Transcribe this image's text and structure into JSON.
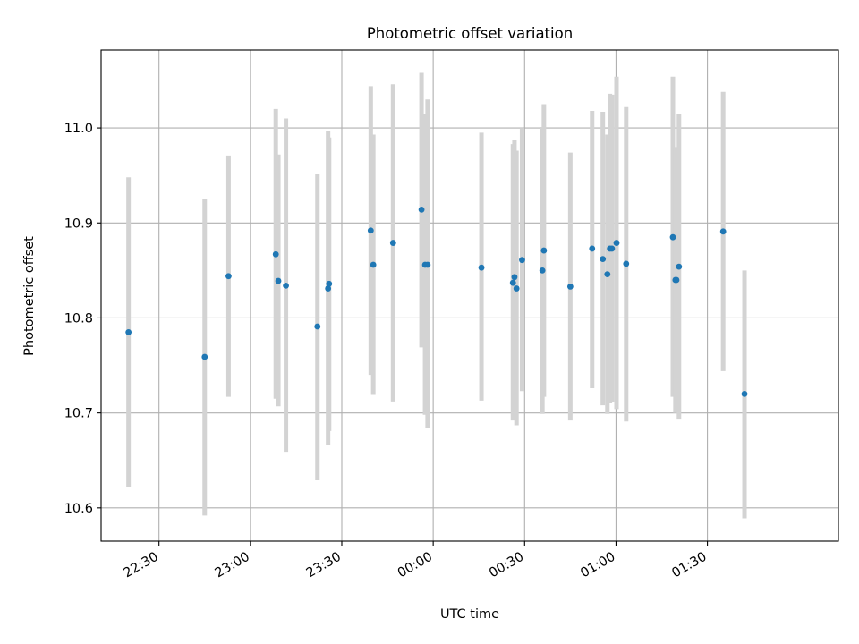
{
  "chart_data": {
    "type": "scatter",
    "title": "Photometric offset variation",
    "xlabel": "UTC time",
    "ylabel": "Photometric offset",
    "x_tick_labels": [
      "22:30",
      "23:00",
      "23:30",
      "00:00",
      "00:30",
      "01:00",
      "01:30"
    ],
    "x_tick_values": [
      "22:30",
      "23:00",
      "23:30",
      "00:00",
      "00:30",
      "01:00",
      "01:30"
    ],
    "y_tick_labels": [
      "10.6",
      "10.7",
      "10.8",
      "10.9",
      "11.0"
    ],
    "y_tick_values": [
      10.6,
      10.7,
      10.8,
      10.9,
      11.0
    ],
    "xlim": [
      "22:11",
      "02:13"
    ],
    "ylim": [
      10.565,
      11.082
    ],
    "grid": true,
    "colors": {
      "point": "#1f77b4",
      "errorbar": "#d3d3d3",
      "grid": "#b0b0b0",
      "axes": "#000000"
    },
    "series": [
      {
        "points": [
          {
            "x": "22:20:00",
            "y": 10.785,
            "ylow": 10.622,
            "yhigh": 10.948
          },
          {
            "x": "22:45:00",
            "y": 10.759,
            "ylow": 10.592,
            "yhigh": 10.925
          },
          {
            "x": "22:52:50",
            "y": 10.844,
            "ylow": 10.717,
            "yhigh": 10.971
          },
          {
            "x": "23:08:20",
            "y": 10.867,
            "ylow": 10.715,
            "yhigh": 11.02
          },
          {
            "x": "23:09:10",
            "y": 10.839,
            "ylow": 10.707,
            "yhigh": 10.972
          },
          {
            "x": "23:11:40",
            "y": 10.834,
            "ylow": 10.659,
            "yhigh": 11.01
          },
          {
            "x": "23:22:00",
            "y": 10.791,
            "ylow": 10.629,
            "yhigh": 10.952
          },
          {
            "x": "23:25:30",
            "y": 10.831,
            "ylow": 10.666,
            "yhigh": 10.997
          },
          {
            "x": "23:25:50",
            "y": 10.836,
            "ylow": 10.681,
            "yhigh": 10.99
          },
          {
            "x": "23:39:30",
            "y": 10.892,
            "ylow": 10.74,
            "yhigh": 11.044
          },
          {
            "x": "23:40:20",
            "y": 10.856,
            "ylow": 10.719,
            "yhigh": 10.993
          },
          {
            "x": "23:46:50",
            "y": 10.879,
            "ylow": 10.712,
            "yhigh": 11.046
          },
          {
            "x": "23:56:10",
            "y": 10.914,
            "ylow": 10.769,
            "yhigh": 11.058
          },
          {
            "x": "23:57:20",
            "y": 10.856,
            "ylow": 10.698,
            "yhigh": 11.015
          },
          {
            "x": "23:58:10",
            "y": 10.856,
            "ylow": 10.684,
            "yhigh": 11.03
          },
          {
            "x": "00:15:50",
            "y": 10.853,
            "ylow": 10.713,
            "yhigh": 10.995
          },
          {
            "x": "00:26:10",
            "y": 10.837,
            "ylow": 10.692,
            "yhigh": 10.983
          },
          {
            "x": "00:26:40",
            "y": 10.843,
            "ylow": 10.697,
            "yhigh": 10.987
          },
          {
            "x": "00:27:20",
            "y": 10.831,
            "ylow": 10.687,
            "yhigh": 10.976
          },
          {
            "x": "00:29:10",
            "y": 10.861,
            "ylow": 10.723,
            "yhigh": 11.0
          },
          {
            "x": "00:35:50",
            "y": 10.85,
            "ylow": 10.699,
            "yhigh": 11.001
          },
          {
            "x": "00:36:20",
            "y": 10.871,
            "ylow": 10.717,
            "yhigh": 11.025
          },
          {
            "x": "00:45:00",
            "y": 10.833,
            "ylow": 10.692,
            "yhigh": 10.974
          },
          {
            "x": "00:52:10",
            "y": 10.873,
            "ylow": 10.726,
            "yhigh": 11.018
          },
          {
            "x": "00:55:40",
            "y": 10.862,
            "ylow": 10.708,
            "yhigh": 11.017
          },
          {
            "x": "00:57:10",
            "y": 10.846,
            "ylow": 10.699,
            "yhigh": 10.993
          },
          {
            "x": "00:58:00",
            "y": 10.873,
            "ylow": 10.71,
            "yhigh": 11.036
          },
          {
            "x": "00:58:40",
            "y": 10.873,
            "ylow": 10.711,
            "yhigh": 11.035
          },
          {
            "x": "01:00:10",
            "y": 10.879,
            "ylow": 10.704,
            "yhigh": 11.054
          },
          {
            "x": "01:03:20",
            "y": 10.857,
            "ylow": 10.691,
            "yhigh": 11.022
          },
          {
            "x": "01:18:40",
            "y": 10.885,
            "ylow": 10.717,
            "yhigh": 11.054
          },
          {
            "x": "01:19:30",
            "y": 10.84,
            "ylow": 10.7,
            "yhigh": 10.98
          },
          {
            "x": "01:19:50",
            "y": 10.84,
            "ylow": 10.704,
            "yhigh": 10.976
          },
          {
            "x": "01:20:40",
            "y": 10.854,
            "ylow": 10.693,
            "yhigh": 11.015
          },
          {
            "x": "01:35:10",
            "y": 10.891,
            "ylow": 10.744,
            "yhigh": 11.038
          },
          {
            "x": "01:42:10",
            "y": 10.72,
            "ylow": 10.589,
            "yhigh": 10.85
          }
        ]
      }
    ]
  }
}
